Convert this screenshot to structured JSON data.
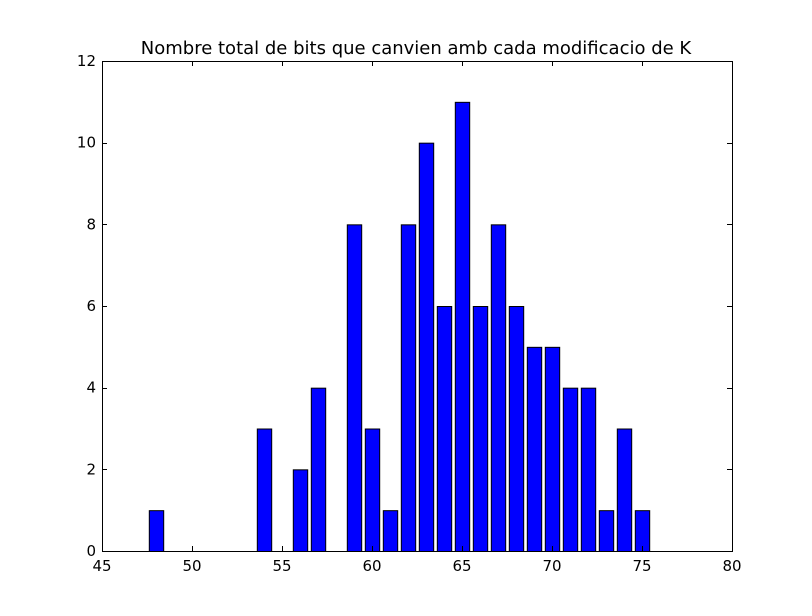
{
  "chart_data": {
    "type": "bar",
    "title": "Nombre total de bits que canvien amb cada modificacio de K",
    "xlabel": "",
    "ylabel": "",
    "xlim": [
      45,
      80
    ],
    "ylim": [
      0,
      12
    ],
    "xticks": [
      45,
      50,
      55,
      60,
      65,
      70,
      75,
      80
    ],
    "yticks": [
      0,
      2,
      4,
      6,
      8,
      10,
      12
    ],
    "bar_width": 0.8,
    "bar_color": "#0000ff",
    "edge_color": "#000000",
    "x": [
      46,
      47,
      48,
      49,
      50,
      51,
      52,
      53,
      54,
      55,
      56,
      57,
      58,
      59,
      60,
      61,
      62,
      63,
      64,
      65,
      66,
      67,
      68,
      69,
      70,
      71,
      72,
      73,
      74,
      75,
      76,
      77,
      78,
      79
    ],
    "values": [
      0,
      0,
      1,
      0,
      0,
      0,
      0,
      0,
      3,
      0,
      2,
      4,
      0,
      8,
      3,
      1,
      8,
      10,
      6,
      11,
      6,
      8,
      6,
      5,
      5,
      4,
      4,
      1,
      3,
      1,
      0,
      0,
      0,
      0
    ]
  }
}
